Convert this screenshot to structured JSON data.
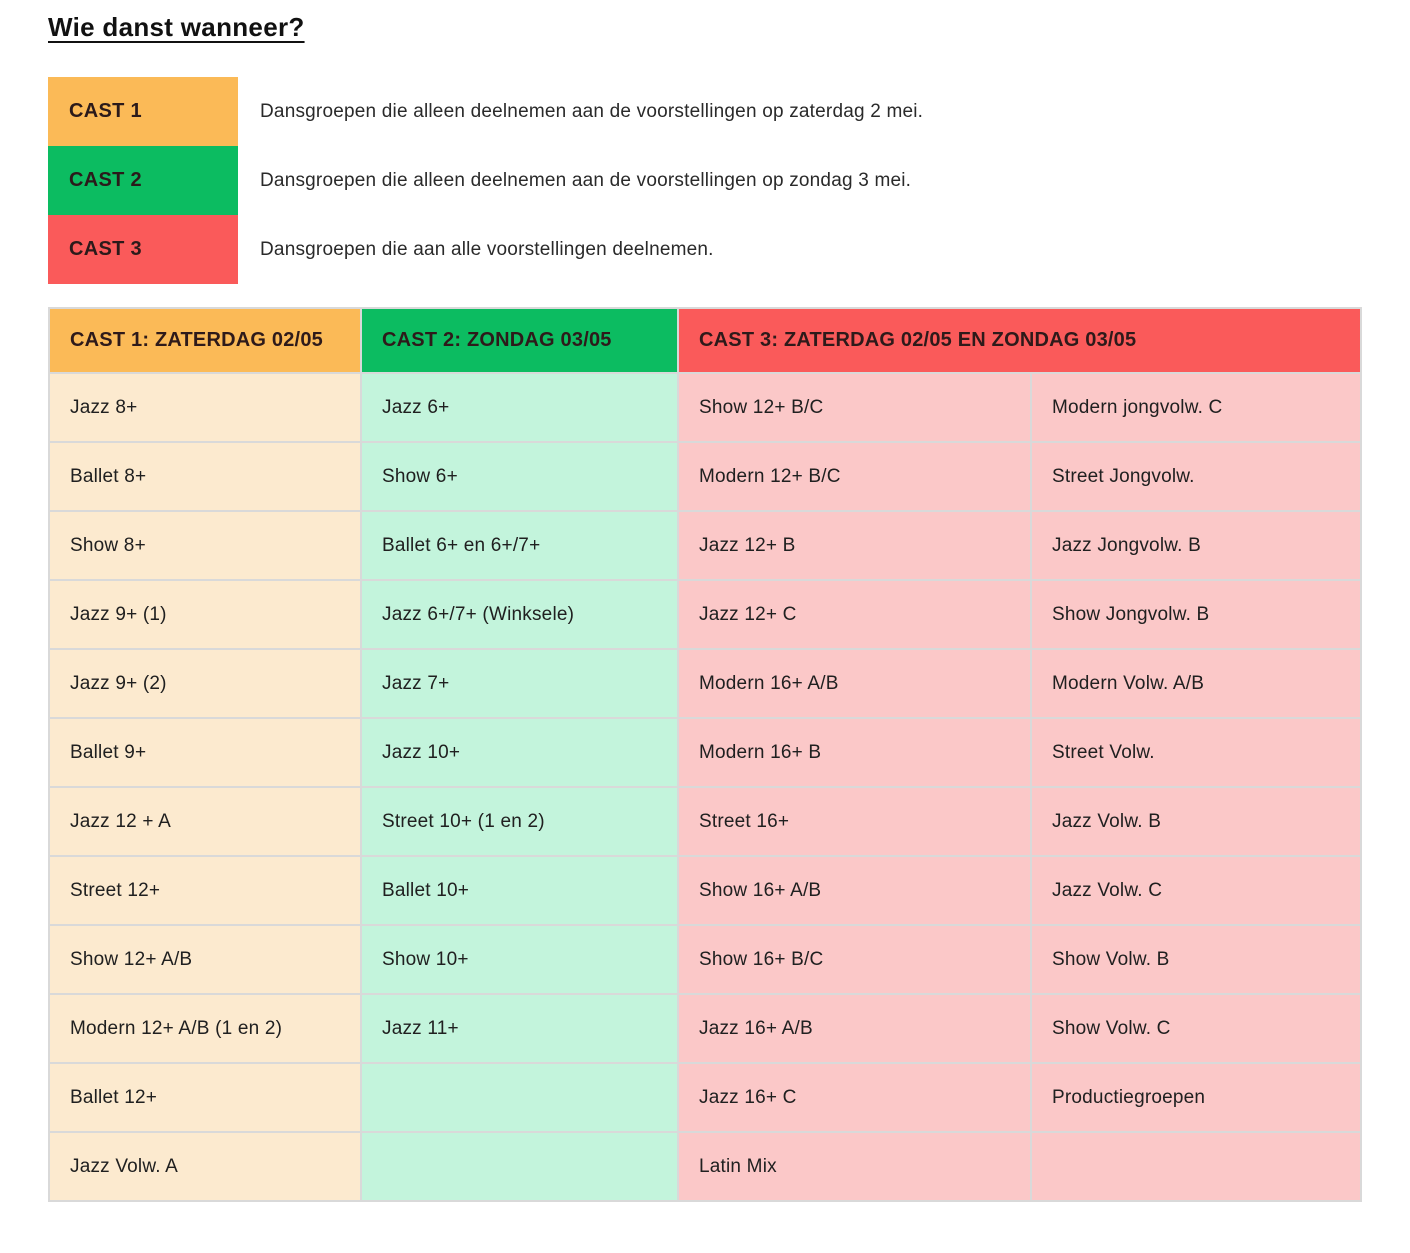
{
  "page": {
    "title": "Wie danst wanneer?"
  },
  "colors": {
    "cast1": "#FBBA57",
    "cast1_light": "#FCEACF",
    "cast2": "#0CBC61",
    "cast2_light": "#C3F4DC",
    "cast3": "#FA5A5A",
    "cast3_light": "#FBC8C8",
    "grid": "#D9D9D9",
    "text": "#202020",
    "header_text": "#2E1A1A"
  },
  "legend": {
    "items": [
      {
        "label": "CAST 1",
        "description": "Dansgroepen die alleen deelnemen aan de voorstellingen op zaterdag 2 mei."
      },
      {
        "label": "CAST 2",
        "description": "Dansgroepen die alleen deelnemen aan de voorstellingen op zondag 3 mei."
      },
      {
        "label": "CAST 3",
        "description": "Dansgroepen die aan alle voorstellingen deelnemen."
      }
    ]
  },
  "table": {
    "headers": [
      "CAST 1: ZATERDAG 02/05",
      "CAST 2: ZONDAG 03/05",
      "CAST 3: ZATERDAG 02/05 EN ZONDAG 03/05"
    ],
    "rows": [
      [
        "Jazz 8+",
        "Jazz 6+",
        "Show 12+ B/C",
        "Modern jongvolw. C"
      ],
      [
        "Ballet 8+",
        "Show 6+",
        "Modern 12+ B/C",
        "Street Jongvolw."
      ],
      [
        "Show 8+",
        "Ballet 6+ en 6+/7+",
        "Jazz 12+ B",
        "Jazz Jongvolw. B"
      ],
      [
        "Jazz 9+ (1)",
        "Jazz 6+/7+ (Winksele)",
        "Jazz 12+ C",
        "Show Jongvolw. B"
      ],
      [
        "Jazz 9+ (2)",
        "Jazz 7+",
        "Modern 16+ A/B",
        "Modern Volw. A/B"
      ],
      [
        "Ballet 9+",
        "Jazz 10+",
        "Modern 16+ B",
        "Street Volw."
      ],
      [
        "Jazz 12 + A",
        "Street 10+ (1 en 2)",
        "Street 16+",
        "Jazz Volw. B"
      ],
      [
        "Street 12+",
        "Ballet 10+",
        "Show 16+ A/B",
        "Jazz Volw. C"
      ],
      [
        "Show 12+ A/B",
        "Show 10+",
        "Show 16+ B/C",
        "Show Volw. B"
      ],
      [
        "Modern 12+ A/B (1 en 2)",
        "Jazz 11+",
        "Jazz 16+ A/B",
        "Show Volw. C"
      ],
      [
        "Ballet 12+",
        "",
        "Jazz 16+ C",
        "Productiegroepen"
      ],
      [
        "Jazz Volw. A",
        "",
        "Latin Mix",
        ""
      ]
    ]
  }
}
